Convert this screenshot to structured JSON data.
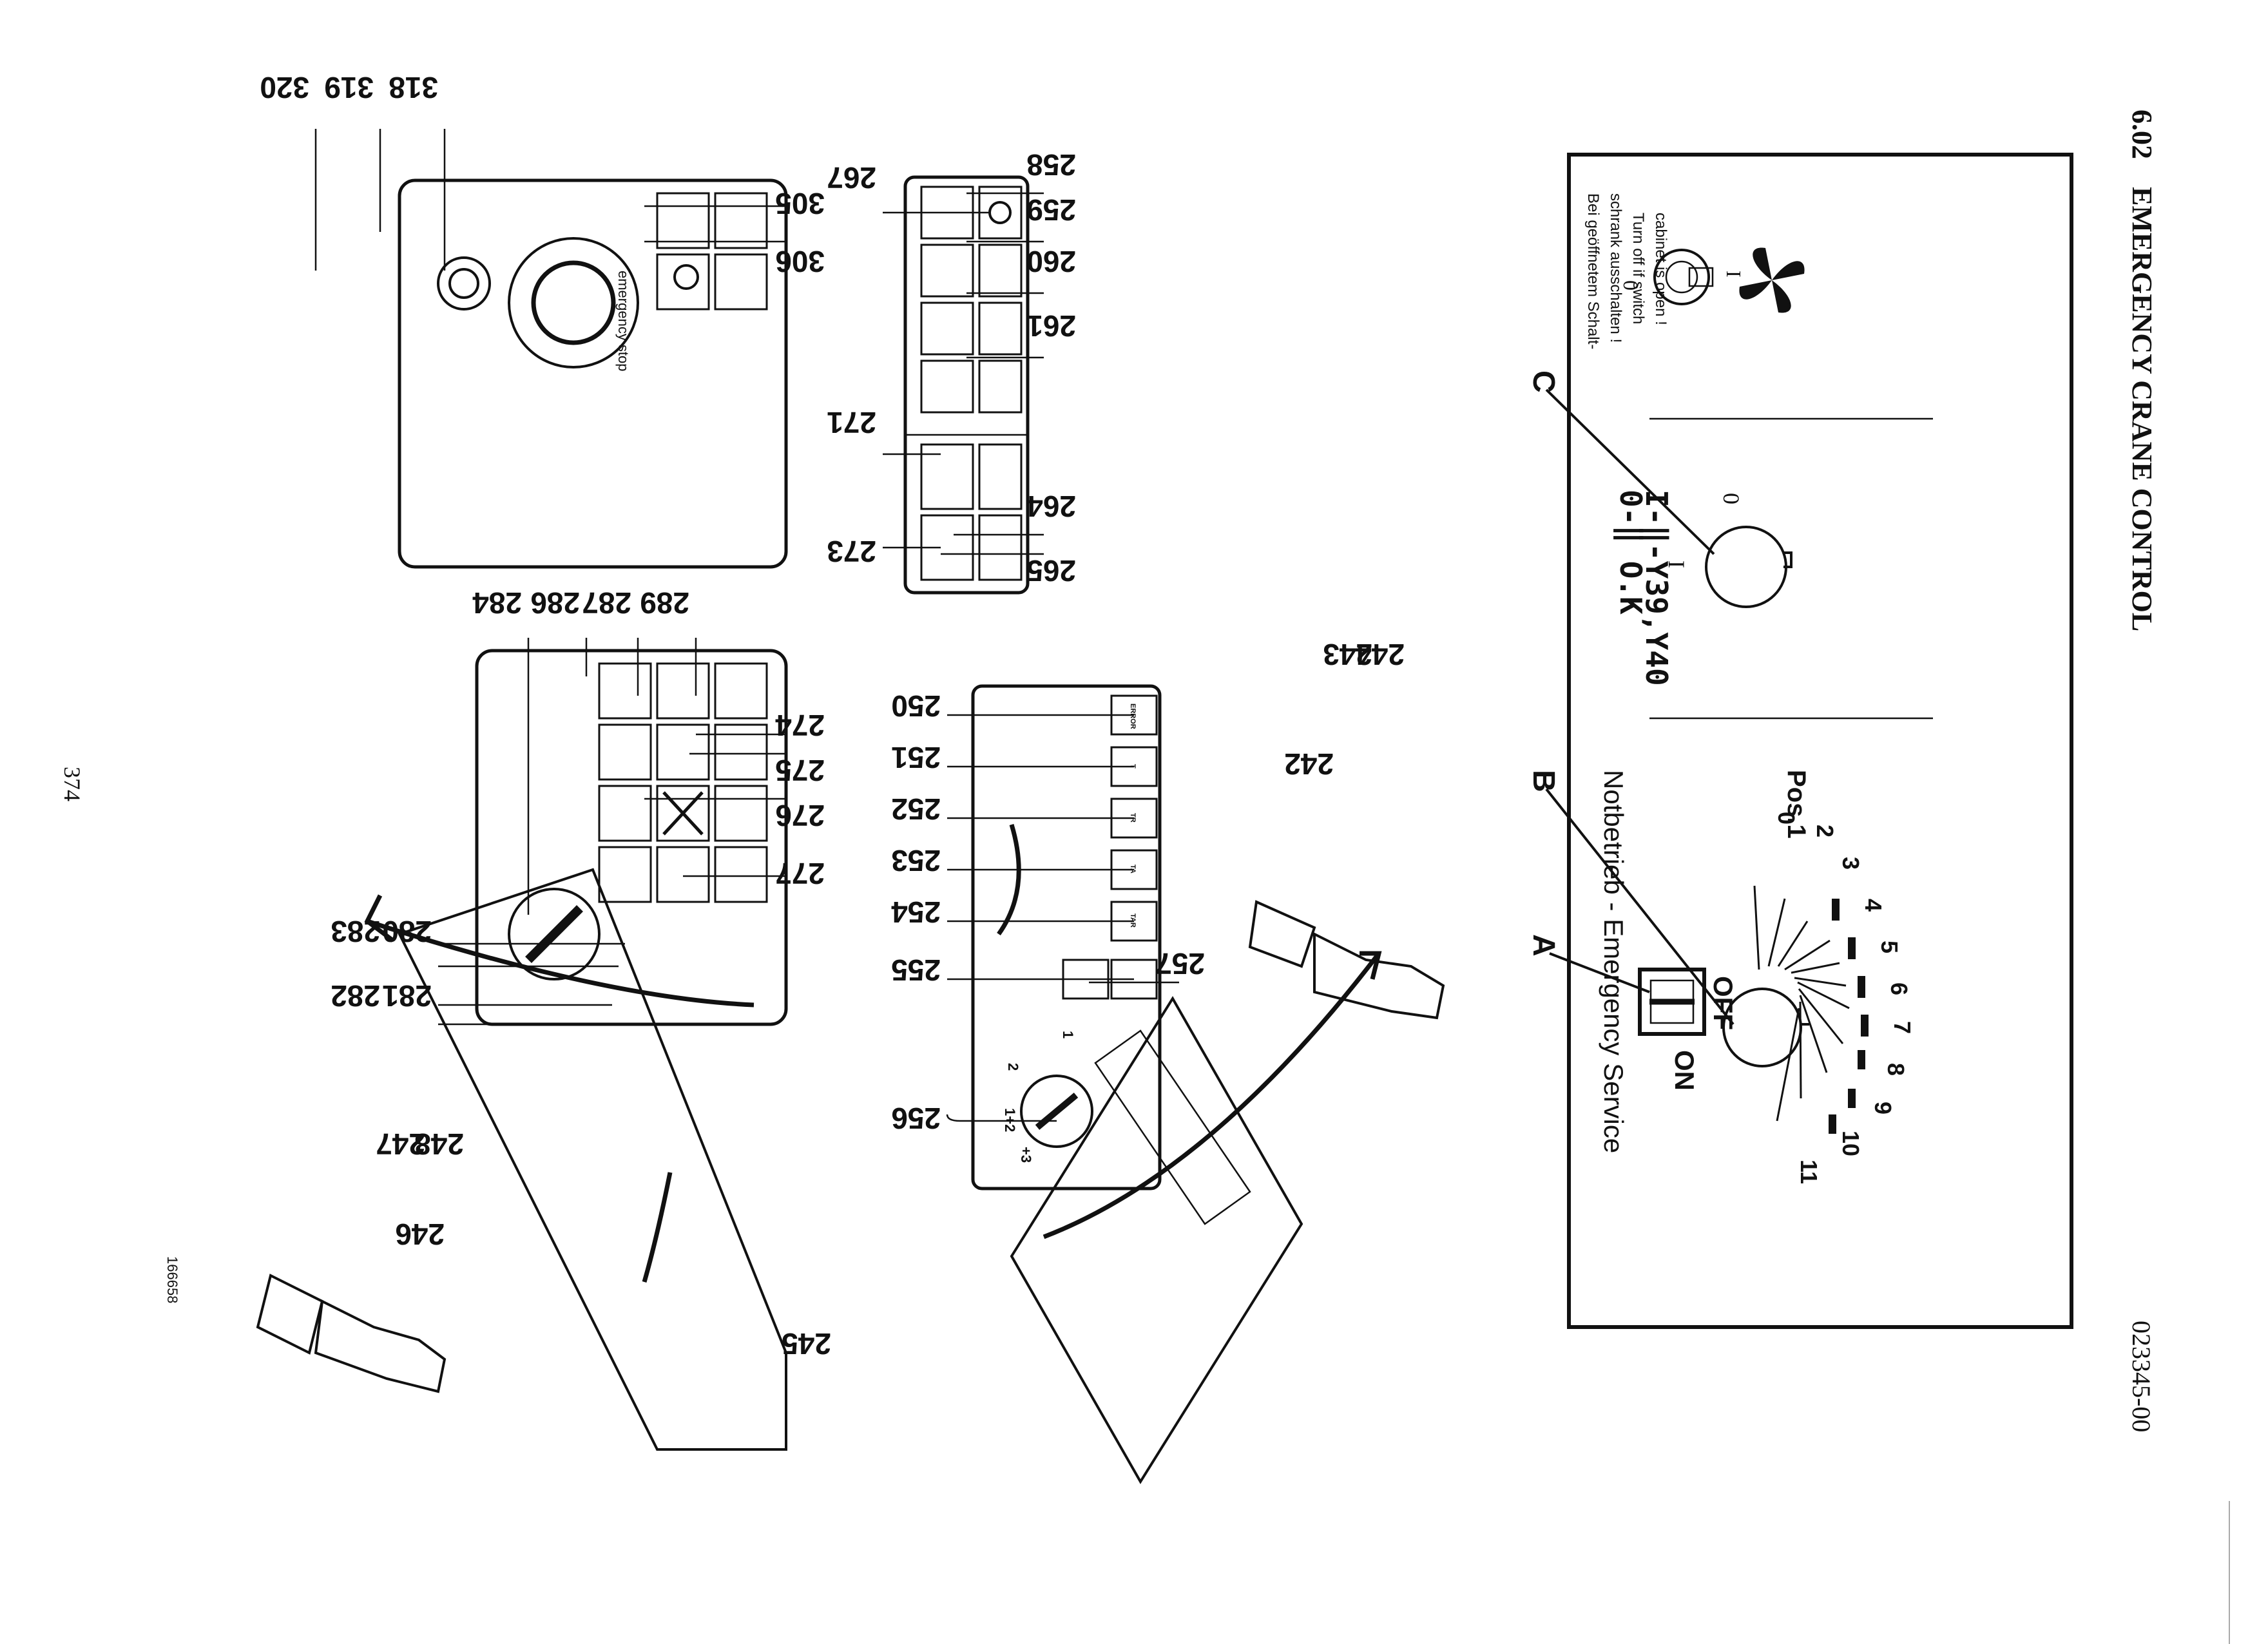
{
  "header": {
    "section_number": "6.02",
    "section_title": "EMERGENCY CRANE CONTROL",
    "doc_number": "023345-00"
  },
  "page_number": "374",
  "figure_number": "166658",
  "panel": {
    "notice_de": [
      "Bei geöffnetem Schalt-",
      "schrank ausschalten !"
    ],
    "notice_en": [
      "Turn off if switch",
      "cabinet is open !"
    ],
    "fan_switch_positions": [
      "I",
      "0"
    ],
    "key_switch_lines": [
      "0-‖ O.K",
      "I-‖-Y39,Y40"
    ],
    "key_switch_positions": [
      "0",
      "I"
    ],
    "selector_title": "Notbetrieb - Emergency Service",
    "selector_pos_label": "Pos.1",
    "selector_positions": [
      "0",
      "2",
      "3",
      "4",
      "5",
      "6",
      "7",
      "8",
      "9",
      "10",
      "11"
    ],
    "main_switch_labels": {
      "off": "OFF",
      "on": "ON"
    },
    "letters": {
      "a": "A",
      "b": "B",
      "c": "C"
    }
  },
  "callouts": {
    "c242": "242",
    "c243": "243",
    "c244": "244",
    "c245": "245",
    "c246": "246",
    "c247": "247",
    "c248": "248",
    "c250": "250",
    "c251": "251",
    "c252": "252",
    "c253": "253",
    "c254": "254",
    "c255": "255",
    "c256": "256",
    "c257": "257",
    "c258": "258",
    "c259": "259",
    "c260": "260",
    "c261": "261",
    "c264": "264",
    "c265": "265",
    "c267": "267",
    "c271": "271",
    "c273": "273",
    "c274": "274",
    "c275": "275",
    "c276": "276",
    "c277": "277",
    "c280": "280",
    "c281": "281",
    "c282": "282",
    "c283": "283",
    "c284": "284",
    "c286": "286",
    "c287": "287",
    "c289": "289",
    "c305": "305",
    "c306": "306",
    "c318": "318",
    "c319": "319",
    "c320": "320"
  },
  "mode_panel": {
    "key_labels": [
      "ERROR",
      "T",
      "TR",
      "TA",
      "TAR"
    ],
    "dial_labels": [
      "1",
      "2",
      "1+2",
      "+3"
    ]
  },
  "lock_panel": {
    "dial_text": "emergency stop"
  }
}
